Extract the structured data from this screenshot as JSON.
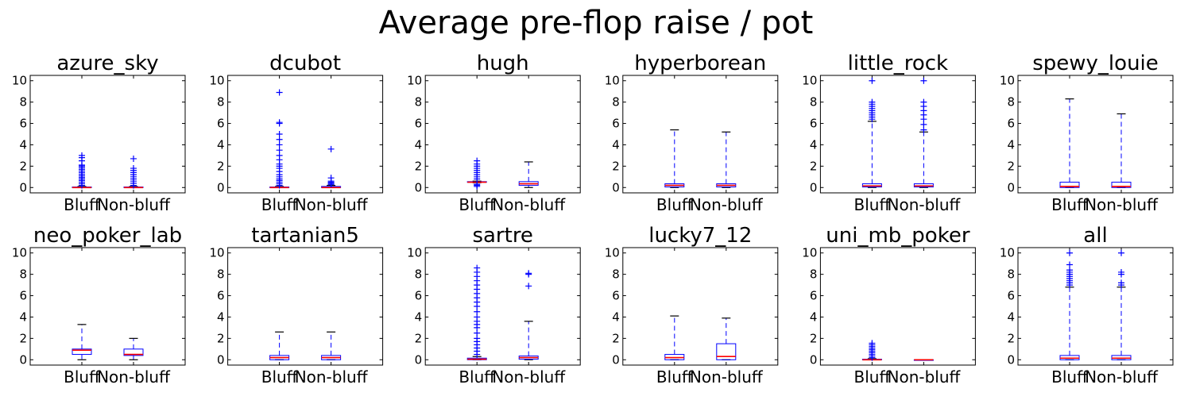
{
  "figure": {
    "title": "Average pre-flop raise / pot"
  },
  "colors": {
    "box": "#0000ff",
    "median": "#ff0000",
    "flier": "#0000ff",
    "axis": "#000000"
  },
  "chart_data": {
    "type": "box",
    "layout": {
      "rows": 2,
      "cols": 6
    },
    "ylim": [
      -0.5,
      10.5
    ],
    "yticks": [
      0,
      2,
      4,
      6,
      8,
      10
    ],
    "categories": [
      "Bluff",
      "Non-bluff"
    ],
    "grid": false,
    "legend": "none",
    "panels": [
      {
        "title": "azure_sky",
        "boxes": [
          {
            "q1": 0,
            "median": 0,
            "q3": 0.05,
            "whisker_low": 0,
            "whisker_high": 0.1,
            "outliers": [
              0.2,
              0.35,
              0.5,
              0.65,
              0.8,
              0.95,
              1.1,
              1.25,
              1.4,
              1.55,
              1.7,
              1.85,
              2.0,
              2.1,
              2.5,
              2.8,
              3.0
            ]
          },
          {
            "q1": 0,
            "median": 0,
            "q3": 0.05,
            "whisker_low": 0,
            "whisker_high": 0.1,
            "outliers": [
              0.2,
              0.4,
              0.6,
              0.8,
              1.0,
              1.2,
              1.4,
              1.6,
              1.8,
              2.7
            ]
          }
        ]
      },
      {
        "title": "dcubot",
        "boxes": [
          {
            "q1": 0,
            "median": 0,
            "q3": 0.05,
            "whisker_low": 0,
            "whisker_high": 0.1,
            "outliers": [
              0.2,
              0.35,
              0.5,
              0.65,
              0.8,
              1.0,
              1.2,
              1.5,
              1.8,
              2.0,
              2.2,
              2.6,
              3.0,
              3.5,
              4.0,
              4.5,
              5.0,
              6.0,
              6.1,
              8.9
            ]
          },
          {
            "q1": 0,
            "median": 0,
            "q3": 0.1,
            "whisker_low": 0,
            "whisker_high": 0.2,
            "outliers": [
              0.3,
              0.4,
              0.5,
              0.6,
              0.9,
              3.6
            ]
          }
        ]
      },
      {
        "title": "hugh",
        "boxes": [
          {
            "q1": 0.5,
            "median": 0.5,
            "q3": 0.55,
            "whisker_low": 0.45,
            "whisker_high": 0.6,
            "outliers": [
              0.1,
              0.2,
              0.3,
              0.8,
              1.0,
              1.2,
              1.4,
              1.6,
              1.8,
              2.0,
              2.2,
              2.5
            ]
          },
          {
            "q1": 0.2,
            "median": 0.35,
            "q3": 0.55,
            "whisker_low": 0,
            "whisker_high": 2.4,
            "outliers": []
          }
        ]
      },
      {
        "title": "hyperborean",
        "boxes": [
          {
            "q1": 0.05,
            "median": 0.2,
            "q3": 0.35,
            "whisker_low": 0,
            "whisker_high": 5.4,
            "outliers": []
          },
          {
            "q1": 0.05,
            "median": 0.2,
            "q3": 0.35,
            "whisker_low": 0,
            "whisker_high": 5.2,
            "outliers": []
          }
        ]
      },
      {
        "title": "little_rock",
        "boxes": [
          {
            "q1": 0.05,
            "median": 0.15,
            "q3": 0.35,
            "whisker_low": 0,
            "whisker_high": 6.2,
            "outliers": [
              6.4,
              6.6,
              6.8,
              7.0,
              7.2,
              7.4,
              7.6,
              7.8,
              8.0,
              10.0
            ]
          },
          {
            "q1": 0.05,
            "median": 0.15,
            "q3": 0.35,
            "whisker_low": 0,
            "whisker_high": 5.2,
            "outliers": [
              5.4,
              5.9,
              6.4,
              6.8,
              7.2,
              7.6,
              8.0,
              10.0
            ]
          }
        ]
      },
      {
        "title": "spewy_louie",
        "boxes": [
          {
            "q1": 0,
            "median": 0.1,
            "q3": 0.5,
            "whisker_low": 0,
            "whisker_high": 8.3,
            "outliers": []
          },
          {
            "q1": 0,
            "median": 0.1,
            "q3": 0.5,
            "whisker_low": 0,
            "whisker_high": 6.9,
            "outliers": []
          }
        ]
      },
      {
        "title": "neo_poker_lab",
        "boxes": [
          {
            "q1": 0.5,
            "median": 0.9,
            "q3": 1.0,
            "whisker_low": 0,
            "whisker_high": 3.3,
            "outliers": []
          },
          {
            "q1": 0.4,
            "median": 0.5,
            "q3": 1.0,
            "whisker_low": 0,
            "whisker_high": 2.0,
            "outliers": []
          }
        ]
      },
      {
        "title": "tartanian5",
        "boxes": [
          {
            "q1": 0,
            "median": 0.2,
            "q3": 0.4,
            "whisker_low": 0,
            "whisker_high": 2.6,
            "outliers": []
          },
          {
            "q1": 0,
            "median": 0.2,
            "q3": 0.4,
            "whisker_low": 0,
            "whisker_high": 2.6,
            "outliers": []
          }
        ]
      },
      {
        "title": "sartre",
        "boxes": [
          {
            "q1": 0,
            "median": 0.05,
            "q3": 0.15,
            "whisker_low": 0,
            "whisker_high": 0.3,
            "outliers": [
              0.5,
              0.8,
              1.1,
              1.4,
              1.7,
              2.0,
              2.5,
              3.0,
              3.3,
              3.6,
              4.0,
              4.5,
              5.0,
              5.4,
              5.8,
              6.2,
              6.6,
              7.0,
              7.4,
              7.8,
              8.2,
              8.6
            ]
          },
          {
            "q1": 0.05,
            "median": 0.2,
            "q3": 0.35,
            "whisker_low": 0,
            "whisker_high": 3.6,
            "outliers": [
              6.9,
              8.0,
              8.1
            ]
          }
        ]
      },
      {
        "title": "lucky7_12",
        "boxes": [
          {
            "q1": 0,
            "median": 0.2,
            "q3": 0.5,
            "whisker_low": 0,
            "whisker_high": 4.1,
            "outliers": []
          },
          {
            "q1": 0,
            "median": 0.3,
            "q3": 1.5,
            "whisker_low": 0,
            "whisker_high": 3.9,
            "outliers": []
          }
        ]
      },
      {
        "title": "uni_mb_poker",
        "boxes": [
          {
            "q1": 0,
            "median": 0,
            "q3": 0.05,
            "whisker_low": 0,
            "whisker_high": 0.1,
            "outliers": [
              0.2,
              0.35,
              0.5,
              0.65,
              0.8,
              0.95,
              1.1,
              1.25,
              1.4,
              1.55
            ]
          },
          {
            "q1": 0,
            "median": 0,
            "q3": 0,
            "whisker_low": 0,
            "whisker_high": 0,
            "outliers": []
          }
        ]
      },
      {
        "title": "all",
        "boxes": [
          {
            "q1": 0,
            "median": 0.15,
            "q3": 0.4,
            "whisker_low": 0,
            "whisker_high": 6.8,
            "outliers": [
              7.0,
              7.2,
              7.4,
              7.6,
              7.8,
              8.0,
              8.2,
              8.4,
              8.9,
              10.0
            ]
          },
          {
            "q1": 0,
            "median": 0.15,
            "q3": 0.4,
            "whisker_low": 0,
            "whisker_high": 6.8,
            "outliers": [
              7.0,
              7.2,
              8.0,
              8.2,
              10.0
            ]
          }
        ]
      }
    ]
  }
}
